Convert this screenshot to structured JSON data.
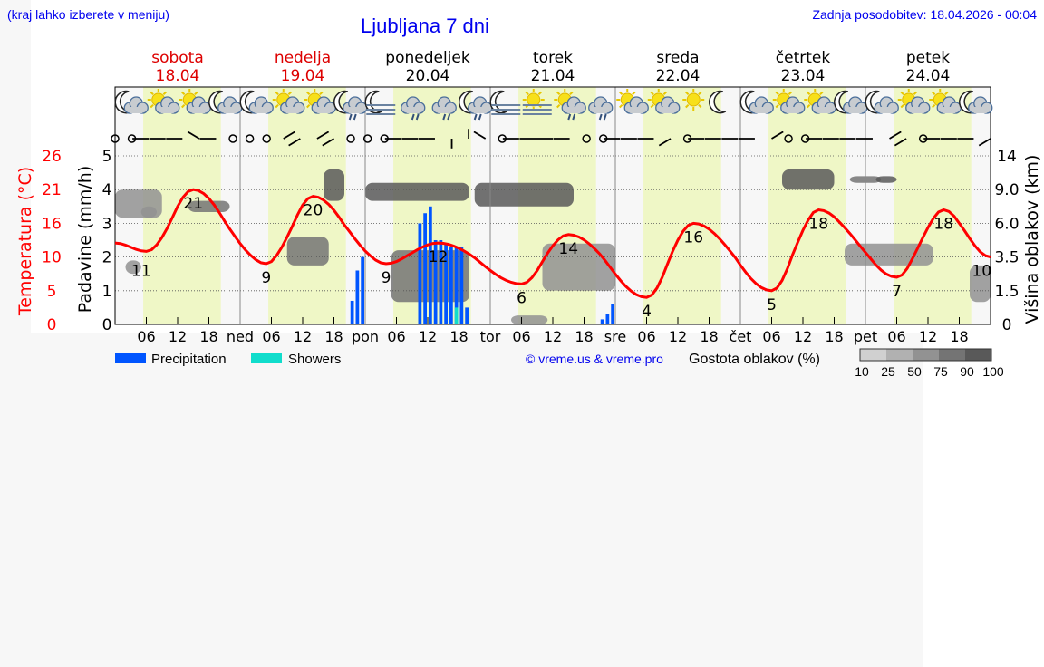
{
  "header": {
    "hint": "(kraj lahko izberete v meniju)",
    "title": "Ljubljana 7 dni",
    "updated": "Zadnja posodobitev: 18.04.2026 - 00:04"
  },
  "colors": {
    "weekend": "#dd0000",
    "weekday": "#000000",
    "daylight": "#eff7c6",
    "temperature": "#ff0000",
    "precipitation": "#0055ff",
    "showers": "#11ddcc",
    "link": "#0000ee"
  },
  "days": [
    {
      "name": "sobota",
      "date": "18.04",
      "weekend": true,
      "abbr": "",
      "icons": [
        "moon-cloud",
        "sun-cloud",
        "sun-cloud",
        "moon-cloud"
      ]
    },
    {
      "name": "nedelja",
      "date": "19.04",
      "weekend": true,
      "abbr": "ned",
      "icons": [
        "moon-cloud",
        "sun-cloud",
        "sun-cloud",
        "moon-cloud-rain"
      ]
    },
    {
      "name": "ponedeljek",
      "date": "20.04",
      "weekend": false,
      "abbr": "pon",
      "icons": [
        "moon-fog",
        "cloud-rain",
        "cloud-rain",
        "moon-cloud-rain"
      ]
    },
    {
      "name": "torek",
      "date": "21.04",
      "weekend": false,
      "abbr": "tor",
      "icons": [
        "moon-fog",
        "sun-fog",
        "sun-cloud-rain",
        "cloud-rain"
      ]
    },
    {
      "name": "sreda",
      "date": "22.04",
      "weekend": false,
      "abbr": "sre",
      "icons": [
        "sun-cloud",
        "sun-cloud",
        "sun",
        "moon"
      ]
    },
    {
      "name": "četrtek",
      "date": "23.04",
      "weekend": false,
      "abbr": "čet",
      "icons": [
        "moon-cloud",
        "sun-cloud",
        "sun-cloud",
        "moon-cloud"
      ]
    },
    {
      "name": "petek",
      "date": "24.04",
      "weekend": false,
      "abbr": "pet",
      "icons": [
        "moon-cloud",
        "sun-cloud",
        "sun-cloud",
        "moon-cloud"
      ]
    }
  ],
  "chart_data": {
    "type": "line",
    "hour_ticks": [
      "06",
      "12",
      "18"
    ],
    "left_axis_temp": {
      "label": "Temperatura (°C)",
      "ticks": [
        "26",
        "21",
        "16",
        "10",
        "5",
        "0"
      ]
    },
    "left_axis_precip": {
      "label": "Padavine (mm/h)",
      "ticks": [
        "5",
        "4",
        "3",
        "2",
        "1",
        "0"
      ],
      "ylim": [
        0,
        5
      ]
    },
    "right_axis": {
      "label": "Višina oblakov (km)",
      "ticks": [
        "14",
        "9.0",
        "6.0",
        "3.5",
        "1.5",
        "0"
      ]
    },
    "daylight_hours": [
      5.4,
      20.3
    ],
    "temperature": {
      "hours": [
        0,
        6,
        15,
        29,
        38,
        52,
        62,
        78,
        87,
        102,
        111,
        126,
        135,
        150,
        159,
        168
      ],
      "values": [
        12.5,
        11,
        21,
        9,
        20,
        9,
        12.5,
        6,
        14,
        4,
        16,
        5,
        18,
        7,
        18,
        10
      ]
    },
    "temperature_labels": [
      {
        "hour": 5,
        "text": "11"
      },
      {
        "hour": 15,
        "text": "21"
      },
      {
        "hour": 29,
        "text": "9"
      },
      {
        "hour": 38,
        "text": "20"
      },
      {
        "hour": 52,
        "text": "9"
      },
      {
        "hour": 62,
        "text": "12"
      },
      {
        "hour": 78,
        "text": "6"
      },
      {
        "hour": 87,
        "text": "14"
      },
      {
        "hour": 102,
        "text": "4"
      },
      {
        "hour": 111,
        "text": "16"
      },
      {
        "hour": 126,
        "text": "5"
      },
      {
        "hour": 135,
        "text": "18"
      },
      {
        "hour": 150,
        "text": "7"
      },
      {
        "hour": 159,
        "text": "18"
      },
      {
        "hour": 167,
        "text": "10"
      }
    ],
    "precipitation": {
      "name": "Precipitation",
      "hours": [
        45,
        46,
        47,
        58,
        59,
        60,
        61,
        62,
        63,
        64,
        65,
        66,
        67,
        93,
        94,
        95
      ],
      "values": [
        0.7,
        1.6,
        2.0,
        3.0,
        3.3,
        3.5,
        2.5,
        2.5,
        2.4,
        2.3,
        2.3,
        2.3,
        0.5,
        0.15,
        0.3,
        0.6
      ]
    },
    "showers": {
      "name": "Showers",
      "hours": [
        65
      ],
      "values": [
        0.5
      ]
    },
    "cloud_layers": [
      [
        5,
        8,
        6.5,
        7.5,
        50
      ],
      [
        14,
        22,
        7,
        8,
        75
      ],
      [
        2,
        5,
        2.5,
        3.3,
        50
      ],
      [
        0,
        9,
        6.5,
        9,
        60
      ],
      [
        40,
        44,
        8,
        12,
        90
      ],
      [
        33,
        41,
        3,
        5,
        75
      ],
      [
        48,
        68,
        8,
        10,
        90
      ],
      [
        53,
        68,
        1,
        4,
        75
      ],
      [
        69,
        88,
        7.5,
        10,
        90
      ],
      [
        82,
        96,
        1.5,
        4.5,
        60
      ],
      [
        76,
        83,
        0,
        0.4,
        60
      ],
      [
        128,
        138,
        9,
        12,
        90
      ],
      [
        141,
        147,
        10,
        11,
        75
      ],
      [
        146,
        150,
        10,
        11,
        90
      ],
      [
        140,
        157,
        3,
        4.5,
        60
      ],
      [
        164,
        168,
        1,
        3,
        50
      ]
    ],
    "cloud_legend": {
      "label": "Gostota oblakov (%)",
      "levels": [
        "10",
        "25",
        "50",
        "75",
        "90",
        "100"
      ]
    },
    "wind": [
      "calm",
      "calm",
      "W",
      "W",
      "W",
      "NW",
      "W",
      "calm",
      "calm",
      "calm",
      "NE",
      "SW",
      "NE",
      "SW",
      "calm",
      "calm",
      "calm",
      "W",
      "W",
      "W",
      "S",
      "N",
      "NW",
      "calm",
      "W",
      "W",
      "W",
      "W",
      "calm",
      "calm",
      "W",
      "W",
      "W",
      "SW",
      "calm",
      "W",
      "W",
      "W",
      "W",
      "NE",
      "calm",
      "calm",
      "W",
      "W",
      "W",
      "W",
      "NE",
      "SW",
      "calm",
      "W",
      "W",
      "W",
      "SW"
    ]
  },
  "legend": {
    "precipitation": "Precipitation",
    "showers": "Showers",
    "copyright": "© vreme.us & vreme.pro"
  }
}
